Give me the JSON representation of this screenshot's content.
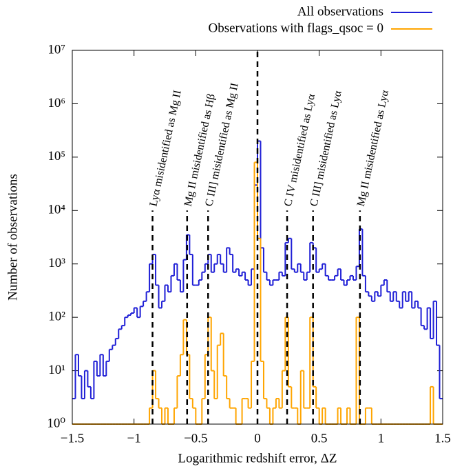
{
  "chart_data": {
    "type": "histogram",
    "x_label": "Logarithmic redshift error, ΔZ",
    "y_label": "Number of observations",
    "log_y": true,
    "legend": "top-right",
    "xlim": [
      -1.5,
      1.5
    ],
    "ylim": [
      1,
      10000000
    ],
    "xticks": [
      {
        "value": -1.5,
        "label": "−1.5"
      },
      {
        "value": -1,
        "label": "−1"
      },
      {
        "value": -0.5,
        "label": "−0.5"
      },
      0,
      0.5,
      1,
      1.5
    ],
    "yticks": [
      {
        "value": 1,
        "label": "10⁰"
      },
      {
        "value": 10,
        "label": "10¹"
      },
      {
        "value": 100,
        "label": "10²"
      },
      {
        "value": 1000,
        "label": "10³"
      },
      {
        "value": 10000,
        "label": "10⁴"
      },
      {
        "value": 100000,
        "label": "10⁵"
      },
      {
        "value": 1000000,
        "label": "10⁶"
      },
      {
        "value": 10000000,
        "label": "10⁷"
      }
    ],
    "bins": [
      -1.5,
      -1.475,
      -1.45,
      -1.425,
      -1.4,
      -1.375,
      -1.35,
      -1.325,
      -1.3,
      -1.275,
      -1.25,
      -1.225,
      -1.2,
      -1.175,
      -1.15,
      -1.125,
      -1.1,
      -1.075,
      -1.05,
      -1.025,
      -1,
      -0.975,
      -0.95,
      -0.925,
      -0.9,
      -0.875,
      -0.85,
      -0.825,
      -0.8,
      -0.775,
      -0.75,
      -0.725,
      -0.7,
      -0.675,
      -0.65,
      -0.625,
      -0.6,
      -0.575,
      -0.55,
      -0.525,
      -0.5,
      -0.475,
      -0.45,
      -0.425,
      -0.4,
      -0.375,
      -0.35,
      -0.325,
      -0.3,
      -0.275,
      -0.25,
      -0.225,
      -0.2,
      -0.175,
      -0.15,
      -0.125,
      -0.1,
      -0.075,
      -0.05,
      -0.025,
      0,
      0.025,
      0.05,
      0.075,
      0.1,
      0.125,
      0.15,
      0.175,
      0.2,
      0.225,
      0.25,
      0.275,
      0.3,
      0.325,
      0.35,
      0.375,
      0.4,
      0.425,
      0.45,
      0.475,
      0.5,
      0.525,
      0.55,
      0.575,
      0.6,
      0.625,
      0.65,
      0.675,
      0.7,
      0.725,
      0.75,
      0.775,
      0.8,
      0.825,
      0.85,
      0.875,
      0.9,
      0.925,
      0.95,
      0.975,
      1,
      1.025,
      1.05,
      1.075,
      1.1,
      1.125,
      1.15,
      1.175,
      1.2,
      1.225,
      1.25,
      1.275,
      1.3,
      1.325,
      1.35,
      1.375,
      1.4,
      1.425,
      1.45,
      1.475,
      1.5
    ],
    "series": [
      {
        "name": "All observations",
        "color": "#1f1fd6",
        "values": [
          3,
          20,
          8,
          3,
          10,
          5,
          3,
          15,
          8,
          20,
          8,
          15,
          25,
          30,
          40,
          60,
          70,
          100,
          110,
          120,
          150,
          100,
          160,
          200,
          300,
          1000,
          1500,
          400,
          150,
          200,
          400,
          300,
          600,
          1000,
          500,
          300,
          1200,
          3500,
          1500,
          400,
          400,
          500,
          700,
          1000,
          1500,
          700,
          1000,
          1500,
          1000,
          700,
          2000,
          1500,
          700,
          800,
          600,
          700,
          500,
          400,
          800,
          30000,
          200000,
          2000,
          700,
          500,
          400,
          500,
          500,
          700,
          600,
          2500,
          3000,
          800,
          700,
          1000,
          700,
          500,
          700,
          2500,
          2000,
          700,
          800,
          1000,
          600,
          500,
          500,
          600,
          800,
          500,
          400,
          500,
          600,
          500,
          900,
          4500,
          600,
          300,
          250,
          200,
          300,
          250,
          400,
          500,
          300,
          200,
          300,
          200,
          150,
          300,
          200,
          300,
          150,
          200,
          150,
          70,
          60,
          150,
          40,
          200,
          30,
          3
        ]
      },
      {
        "name": "Observations with flags_qsoc = 0",
        "color": "#ffa500",
        "values": [
          0,
          0,
          0,
          0,
          0,
          0,
          0,
          0,
          0,
          0,
          0,
          0,
          0,
          0,
          0,
          0,
          0,
          0,
          0,
          0,
          0,
          0,
          0,
          0,
          0,
          2,
          10,
          3,
          2,
          1,
          2,
          1,
          1,
          2,
          8,
          20,
          90,
          20,
          3,
          2,
          1,
          0,
          3,
          20,
          100,
          10,
          3,
          30,
          50,
          8,
          3,
          2,
          2,
          1,
          1,
          3,
          3,
          2,
          15,
          80000,
          3000,
          15,
          3,
          2,
          1,
          2,
          3,
          2,
          10,
          100,
          5,
          2,
          2,
          1,
          10,
          2,
          2,
          100,
          5,
          2,
          1,
          2,
          1,
          1,
          0,
          1,
          2,
          1,
          0,
          2,
          1,
          1,
          100,
          1,
          1,
          2,
          2,
          1,
          0,
          0,
          0,
          1,
          0,
          0,
          0,
          0,
          0,
          0,
          0,
          0,
          0,
          0,
          0,
          0,
          0,
          0,
          5,
          0,
          0,
          0
        ]
      }
    ],
    "annotations": [
      {
        "text": "Lyα misidentified as Mg II",
        "x": -0.85,
        "y": 10000
      },
      {
        "text": "Mg II misidentified as Hβ",
        "x": -0.57,
        "y": 10000
      },
      {
        "text": "C III] misidentified as Mg II",
        "x": -0.4,
        "y": 10000
      },
      {
        "text": "C IV misidentified as Lyα",
        "x": 0.24,
        "y": 10000
      },
      {
        "text": "C III] misidentified as Lyα",
        "x": 0.45,
        "y": 10000
      },
      {
        "text": "Mg II misidentified as Lyα",
        "x": 0.83,
        "y": 10000
      }
    ],
    "vline_x": 0
  }
}
